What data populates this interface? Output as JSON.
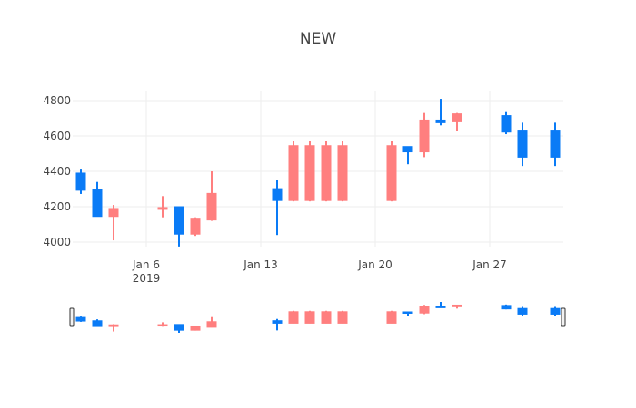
{
  "chart_data": {
    "type": "candlestick",
    "title": "NEW",
    "xlabel": "",
    "ylabel": "",
    "ylim": [
      3960,
      4830
    ],
    "yticks": [
      4000,
      4200,
      4400,
      4600,
      4800
    ],
    "xticks": [
      {
        "date": "2019-01-06",
        "label": "Jan 6",
        "sublabel": "2019"
      },
      {
        "date": "2019-01-13",
        "label": "Jan 13",
        "sublabel": ""
      },
      {
        "date": "2019-01-20",
        "label": "Jan 20",
        "sublabel": ""
      },
      {
        "date": "2019-01-27",
        "label": "Jan 27",
        "sublabel": ""
      }
    ],
    "grid": true,
    "rangeslider": true,
    "colors": {
      "increasing": "#FF7F7F",
      "decreasing": "#0A7BF6"
    },
    "candles": [
      {
        "date": "2019-01-02",
        "day": 2,
        "dir": "dec",
        "open": 4390,
        "close": 4293,
        "high": 4415,
        "low": 4272
      },
      {
        "date": "2019-01-03",
        "day": 3,
        "dir": "dec",
        "open": 4300,
        "close": 4145,
        "high": 4340,
        "low": 4145
      },
      {
        "date": "2019-01-04",
        "day": 4,
        "dir": "inc",
        "open": 4145,
        "close": 4190,
        "high": 4210,
        "low": 4010
      },
      {
        "date": "2019-01-07",
        "day": 7,
        "dir": "inc",
        "open": 4185,
        "close": 4195,
        "high": 4260,
        "low": 4140
      },
      {
        "date": "2019-01-08",
        "day": 8,
        "dir": "dec",
        "open": 4200,
        "close": 4045,
        "high": 4200,
        "low": 3975
      },
      {
        "date": "2019-01-09",
        "day": 9,
        "dir": "inc",
        "open": 4045,
        "close": 4135,
        "high": 4140,
        "low": 4035
      },
      {
        "date": "2019-01-10",
        "day": 10,
        "dir": "inc",
        "open": 4125,
        "close": 4275,
        "high": 4400,
        "low": 4120
      },
      {
        "date": "2019-01-14",
        "day": 14,
        "dir": "dec",
        "open": 4302,
        "close": 4235,
        "high": 4350,
        "low": 4040
      },
      {
        "date": "2019-01-15",
        "day": 15,
        "dir": "inc",
        "open": 4235,
        "close": 4545,
        "high": 4570,
        "low": 4230
      },
      {
        "date": "2019-01-16",
        "day": 16,
        "dir": "inc",
        "open": 4235,
        "close": 4545,
        "high": 4570,
        "low": 4230
      },
      {
        "date": "2019-01-17",
        "day": 17,
        "dir": "inc",
        "open": 4235,
        "close": 4545,
        "high": 4570,
        "low": 4230
      },
      {
        "date": "2019-01-18",
        "day": 18,
        "dir": "inc",
        "open": 4235,
        "close": 4545,
        "high": 4570,
        "low": 4230
      },
      {
        "date": "2019-01-21",
        "day": 21,
        "dir": "inc",
        "open": 4235,
        "close": 4545,
        "high": 4570,
        "low": 4230
      },
      {
        "date": "2019-01-22",
        "day": 22,
        "dir": "dec",
        "open": 4540,
        "close": 4510,
        "high": 4540,
        "low": 4440
      },
      {
        "date": "2019-01-23",
        "day": 23,
        "dir": "inc",
        "open": 4510,
        "close": 4690,
        "high": 4730,
        "low": 4480
      },
      {
        "date": "2019-01-24",
        "day": 24,
        "dir": "dec",
        "open": 4690,
        "close": 4675,
        "high": 4810,
        "low": 4660
      },
      {
        "date": "2019-01-25",
        "day": 25,
        "dir": "inc",
        "open": 4680,
        "close": 4725,
        "high": 4730,
        "low": 4630
      },
      {
        "date": "2019-01-28",
        "day": 28,
        "dir": "dec",
        "open": 4715,
        "close": 4622,
        "high": 4740,
        "low": 4610
      },
      {
        "date": "2019-01-29",
        "day": 29,
        "dir": "dec",
        "open": 4633,
        "close": 4480,
        "high": 4675,
        "low": 4430
      },
      {
        "date": "2019-01-31",
        "day": 31,
        "dir": "dec",
        "open": 4633,
        "close": 4480,
        "high": 4675,
        "low": 4430
      }
    ]
  }
}
